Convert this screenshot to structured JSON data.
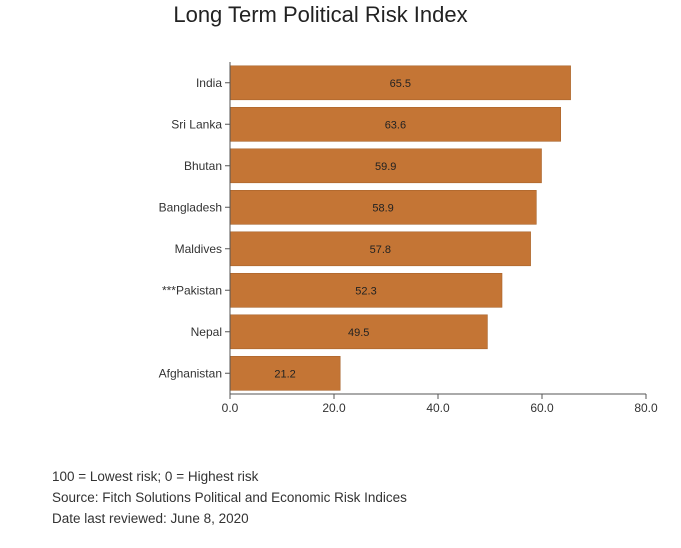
{
  "chart_data": {
    "type": "bar",
    "orientation": "horizontal",
    "title": "Long Term Political Risk Index",
    "categories": [
      "India",
      "Sri Lanka",
      "Bhutan",
      "Bangladesh",
      "Maldives",
      "***Pakistan",
      "Nepal",
      "Afghanistan"
    ],
    "values": [
      65.5,
      63.6,
      59.9,
      58.9,
      57.8,
      52.3,
      49.5,
      21.2
    ],
    "value_labels": [
      "65.5",
      "63.6",
      "59.9",
      "58.9",
      "57.8",
      "52.3",
      "49.5",
      "21.2"
    ],
    "xlim": [
      0,
      80
    ],
    "xticks": [
      "0.0",
      "20.0",
      "40.0",
      "60.0",
      "80.0"
    ],
    "xtick_values": [
      0,
      20,
      40,
      60,
      80
    ],
    "grid": false,
    "bar_color": "#c47535"
  },
  "notes": {
    "scale": "100 = Lowest risk; 0 = Highest risk",
    "source": "Source: Fitch Solutions Political and Economic Risk Indices",
    "reviewed": "Date last reviewed: June 8, 2020"
  }
}
